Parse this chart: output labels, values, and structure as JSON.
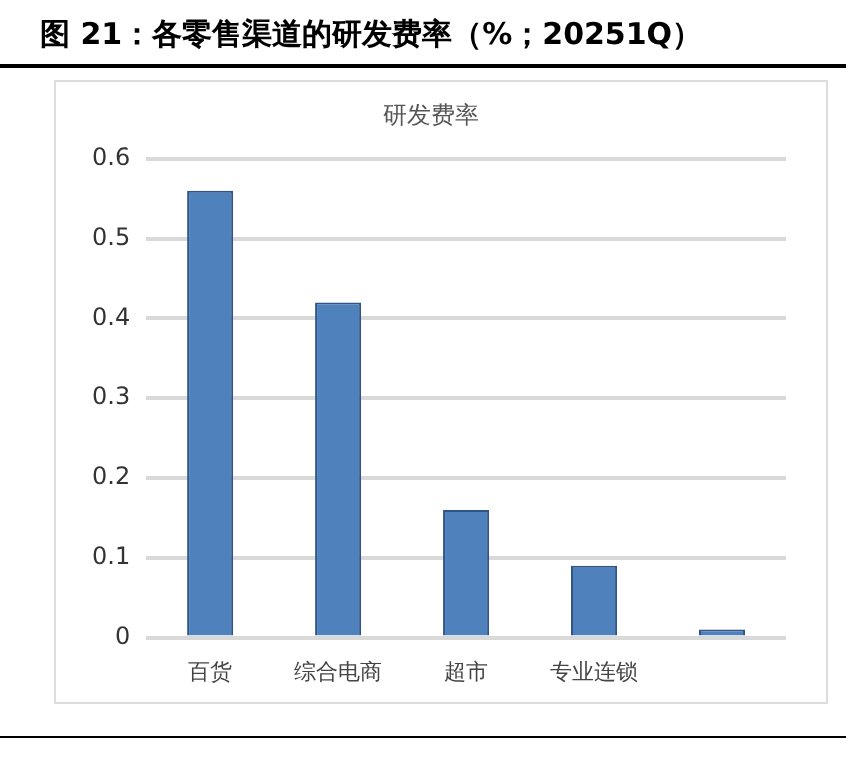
{
  "chart_data": {
    "type": "bar",
    "title": "图 21：各零售渠道的研发费率（%；20251Q）",
    "subtitle": "研发费率",
    "categories": [
      "百货",
      "综合电商",
      "超市",
      "专业连锁",
      null
    ],
    "values": [
      0.56,
      0.42,
      0.16,
      0.09,
      0.01
    ],
    "color": "#4f81bd",
    "ylim": [
      0,
      0.6
    ],
    "yticks": [
      {
        "value": 0,
        "label": "0"
      },
      {
        "value": 0.1,
        "label": "0.1"
      },
      {
        "value": 0.2,
        "label": "0.2"
      },
      {
        "value": 0.3,
        "label": "0.3"
      },
      {
        "value": 0.4,
        "label": "0.4"
      },
      {
        "value": 0.5,
        "label": "0.5"
      },
      {
        "value": 0.6,
        "label": "0.6"
      }
    ],
    "grid": "y",
    "legend": false
  }
}
